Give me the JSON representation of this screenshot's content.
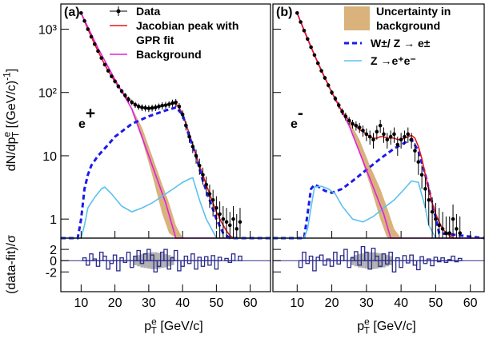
{
  "chart_data": [
    {
      "type": "line",
      "panel_label": "(a)",
      "charge_label": [
        [
          "e"
        ],
        [
          "+",
          "sup"
        ]
      ],
      "xlabel": [
        [
          "p"
        ],
        [
          "e",
          "sup"
        ],
        [
          "T",
          "sub"
        ],
        [
          " [GeV/c]"
        ]
      ],
      "ylabel": [
        [
          "dN/dp"
        ],
        [
          "e",
          "sup"
        ],
        [
          "T",
          "sub"
        ],
        [
          " [(GeV/c)"
        ],
        [
          "-1",
          "sup"
        ],
        [
          "]"
        ]
      ],
      "xlim": [
        4,
        66
      ],
      "xticks": [
        10,
        20,
        30,
        40,
        50,
        60
      ],
      "ylim": [
        0.5,
        2500
      ],
      "log_y": true,
      "ytick_labels": true,
      "yticks": [
        1,
        10,
        {
          "value": 100,
          "label": "10²"
        },
        {
          "value": 1000,
          "label": "10³"
        }
      ],
      "legend": "top-center",
      "series": [
        {
          "name": [
            "Data"
          ],
          "style": "points",
          "color": "#000000",
          "x": [
            10,
            11,
            12,
            13,
            14,
            15,
            16,
            17,
            18,
            19,
            20,
            21,
            22,
            23,
            24,
            25,
            26,
            27,
            28,
            29,
            30,
            31,
            32,
            33,
            34,
            35,
            36,
            37,
            38,
            39,
            40,
            41,
            42,
            43,
            44,
            45,
            46,
            47,
            48,
            49,
            50,
            51,
            52,
            53,
            54,
            55,
            56,
            57
          ],
          "values": [
            1800,
            1350,
            1000,
            760,
            580,
            450,
            350,
            275,
            220,
            180,
            150,
            125,
            105,
            90,
            78,
            70,
            64,
            60,
            58,
            57,
            56,
            57,
            58,
            60,
            62,
            63,
            65,
            68,
            70,
            60,
            45,
            30,
            20,
            14,
            10,
            7,
            5,
            3.5,
            2.5,
            2,
            1.5,
            1.2,
            1,
            0.9,
            0.8,
            1,
            0.7,
            0.9
          ],
          "errors": [
            60,
            50,
            40,
            30,
            25,
            20,
            18,
            15,
            13,
            12,
            11,
            10,
            9,
            8,
            8,
            7,
            7,
            7,
            7,
            7,
            7,
            7,
            7,
            7,
            8,
            8,
            8,
            9,
            9,
            8,
            7,
            5,
            4,
            3,
            2.5,
            2,
            1.5,
            1.2,
            1,
            0.9,
            0.8,
            0.7,
            0.6,
            0.6,
            0.5,
            0.6,
            0.5,
            0.6
          ]
        },
        {
          "name": [
            "Jacobian peak with",
            "GPR fit"
          ],
          "style": "line",
          "color": "#e8141c",
          "x": [
            10,
            11,
            12,
            13,
            14,
            15,
            16,
            17,
            18,
            19,
            20,
            21,
            22,
            23,
            24,
            25,
            26,
            27,
            28,
            29,
            30,
            31,
            32,
            33,
            34,
            35,
            36,
            37,
            38,
            39,
            40,
            41,
            42,
            43,
            44,
            45,
            46,
            47,
            48,
            49,
            50,
            51,
            52,
            53,
            54,
            55,
            56,
            57
          ],
          "values": [
            1800,
            1350,
            1000,
            760,
            580,
            450,
            350,
            275,
            220,
            180,
            150,
            125,
            105,
            90,
            78,
            70,
            64,
            60,
            58,
            57,
            56,
            57,
            58,
            60,
            62,
            63,
            65,
            67,
            66,
            58,
            45,
            32,
            22,
            15,
            10,
            7,
            5,
            3.5,
            2.5,
            1.8,
            1.3,
            1,
            0.8,
            0.65,
            0.55,
            0.5,
            0.5,
            0.5
          ]
        },
        {
          "name": [
            "Background"
          ],
          "style": "line",
          "color": "#e020e0",
          "x": [
            10,
            15,
            20,
            25,
            30,
            35,
            38,
            66
          ],
          "values": [
            1800,
            500,
            160,
            55,
            10,
            1.8,
            0.5,
            0.5
          ]
        },
        {
          "style": "band",
          "color": "#d9b27c",
          "x": [
            25,
            28,
            31,
            34,
            36,
            38,
            40
          ],
          "low": [
            50,
            18,
            5,
            1.2,
            0.6,
            0.5,
            0.5
          ],
          "high": [
            58,
            28,
            10,
            3.5,
            1.8,
            0.8,
            0.5
          ]
        },
        {
          "style": "line",
          "color": "#1a1aee",
          "dash": true,
          "x": [
            4,
            9,
            10,
            11,
            12,
            13,
            15,
            18,
            20,
            25,
            30,
            35,
            38,
            40,
            42,
            44,
            46,
            48,
            50,
            52,
            54,
            66
          ],
          "values": [
            0.5,
            0.5,
            1,
            3,
            5,
            7,
            10,
            15,
            20,
            32,
            42,
            52,
            58,
            45,
            20,
            10,
            4,
            2,
            1,
            0.6,
            0.5,
            0.5
          ]
        },
        {
          "style": "line",
          "color": "#5bc0f0",
          "x": [
            4,
            10,
            11,
            12,
            14,
            16,
            17,
            19,
            22,
            25,
            28,
            31,
            35,
            38,
            40,
            42,
            43,
            45,
            47,
            48,
            50,
            66
          ],
          "values": [
            0.5,
            0.5,
            0.8,
            1.5,
            2.2,
            3,
            3.2,
            2.5,
            1.6,
            1.3,
            1.5,
            1.8,
            2.5,
            3.2,
            3.8,
            4.3,
            4.5,
            2,
            1,
            0.8,
            0.5,
            0.5
          ]
        }
      ],
      "residual": {
        "ylabel": "(data-fit)/σ",
        "ylim": [
          -5.5,
          4
        ],
        "yticks": [
          -2,
          0,
          2
        ],
        "color": "#2b2b8c",
        "band_color": "#b0b0b0",
        "values": [
          0,
          0.5,
          -0.8,
          1.2,
          0.3,
          -1,
          1.5,
          0.8,
          -1.5,
          -0.5,
          1,
          -1.8,
          0.5,
          -0.3,
          1.5,
          -1.2,
          0.8,
          1.8,
          -0.5,
          1.2,
          2,
          1,
          -2,
          -1,
          1.5,
          2,
          -1.5,
          0.5,
          1.8,
          -1.8,
          -1,
          0.8,
          -0.5,
          1.2,
          -1.5,
          0.6,
          -1,
          0.7,
          -0.8,
          0.9,
          -1.5,
          0.6,
          0,
          0.4,
          -0.3,
          1.2,
          0,
          0.8
        ],
        "band_x": [
          26,
          27,
          28,
          29,
          30,
          31,
          32,
          33,
          34,
          35,
          36,
          37
        ],
        "band": [
          0.8,
          1,
          1.2,
          1.3,
          1.4,
          1.5,
          1.5,
          1.4,
          1.3,
          1.2,
          1,
          0.8
        ]
      }
    },
    {
      "type": "line",
      "panel_label": "(b)",
      "charge_label": [
        [
          "e"
        ],
        [
          "-",
          "sup"
        ]
      ],
      "xlabel": [
        [
          "p"
        ],
        [
          "e",
          "sup"
        ],
        [
          "T",
          "sub"
        ],
        [
          " [GeV/c]"
        ]
      ],
      "xlim": [
        3,
        64
      ],
      "xticks": [
        10,
        20,
        30,
        40,
        50,
        60
      ],
      "ylim": [
        0.5,
        2500
      ],
      "log_y": true,
      "ytick_labels": false,
      "yticks": [
        1,
        10,
        100,
        1000
      ],
      "legend": "top-right",
      "series": [
        {
          "name": [
            "Uncertainty in",
            "background"
          ],
          "style": "band",
          "color": "#d9b27c",
          "x": [
            25,
            28,
            31,
            34,
            36,
            38,
            40
          ],
          "low": [
            30,
            11,
            3.5,
            1,
            0.5,
            0.5,
            0.5
          ],
          "high": [
            36,
            18,
            7,
            3,
            1.5,
            0.7,
            0.5
          ]
        },
        {
          "name": [
            "W±/ Z → e±"
          ],
          "style": "line",
          "color": "#1a1aee",
          "dash": true,
          "x": [
            3,
            12,
            13,
            14,
            15,
            16,
            18,
            20,
            23,
            26,
            30,
            34,
            38,
            41,
            43,
            45,
            47,
            49,
            51,
            64
          ],
          "values": [
            0.5,
            0.5,
            1.2,
            3,
            3.5,
            3.3,
            2.8,
            2.6,
            3,
            4,
            6,
            9,
            13,
            16,
            18,
            12,
            5,
            1.8,
            0.6,
            0.5
          ]
        },
        {
          "name": [
            "Z →e⁺e⁻"
          ],
          "style": "line",
          "color": "#5bc0f0",
          "x": [
            3,
            12,
            13,
            14,
            15,
            17,
            19,
            21,
            23,
            26,
            29,
            32,
            35,
            38,
            41,
            43,
            45,
            47,
            48,
            50,
            64
          ],
          "values": [
            0.5,
            0.5,
            0.7,
            1.5,
            3.2,
            3.3,
            3,
            2.5,
            1.6,
            1,
            0.9,
            1.1,
            1.5,
            2,
            3,
            4,
            3.8,
            1.5,
            0.8,
            0.5,
            0.5
          ]
        },
        {
          "style": "line",
          "color": "#e020e0",
          "x": [
            10,
            15,
            20,
            25,
            30,
            35,
            37,
            64
          ],
          "values": [
            1800,
            390,
            100,
            30,
            6,
            1.2,
            0.5,
            0.5
          ]
        },
        {
          "style": "line",
          "color": "#e8141c",
          "x": [
            10,
            11,
            12,
            13,
            14,
            15,
            16,
            17,
            18,
            19,
            20,
            21,
            22,
            23,
            24,
            25,
            26,
            27,
            28,
            29,
            30,
            31,
            32,
            33,
            34,
            35,
            36,
            37,
            38,
            39,
            40,
            41,
            42,
            43,
            44,
            45,
            46,
            47,
            48,
            49,
            50,
            51,
            52,
            53,
            54,
            55,
            56,
            57
          ],
          "values": [
            1800,
            1300,
            950,
            700,
            520,
            390,
            290,
            220,
            170,
            130,
            100,
            80,
            63,
            50,
            42,
            36,
            32,
            29,
            26,
            24,
            22,
            20,
            19,
            19,
            20,
            20,
            19,
            19,
            19,
            18,
            18,
            19,
            20,
            21,
            19,
            14,
            9,
            5,
            3,
            1.8,
            1.2,
            0.9,
            0.7,
            0.6,
            0.55,
            0.5,
            0.5,
            0.5
          ]
        },
        {
          "style": "points",
          "color": "#000000",
          "x": [
            10,
            11,
            12,
            13,
            14,
            15,
            16,
            17,
            18,
            19,
            20,
            21,
            22,
            23,
            24,
            25,
            26,
            27,
            28,
            29,
            30,
            31,
            32,
            33,
            34,
            35,
            36,
            37,
            38,
            39,
            40,
            41,
            42,
            43,
            44,
            45,
            46,
            47,
            48,
            49,
            50,
            51,
            52,
            53,
            54,
            55,
            56,
            57
          ],
          "values": [
            1800,
            1300,
            950,
            700,
            520,
            390,
            290,
            220,
            170,
            130,
            100,
            80,
            63,
            50,
            42,
            36,
            32,
            30,
            28,
            25,
            22,
            20,
            18,
            24,
            30,
            22,
            18,
            20,
            22,
            15,
            18,
            20,
            22,
            18,
            12,
            8,
            5,
            3,
            2,
            1.3,
            1,
            0.8,
            0.7,
            0.6,
            0.6,
            1,
            0.7,
            0.6
          ],
          "errors": [
            55,
            45,
            38,
            30,
            25,
            20,
            17,
            14,
            12,
            10,
            9,
            8,
            7,
            6,
            6,
            5,
            5,
            5,
            5,
            5,
            5,
            5,
            5,
            6,
            7,
            6,
            5,
            5,
            6,
            5,
            5,
            5,
            6,
            5,
            4,
            3,
            2,
            1.5,
            1.2,
            0.9,
            0.8,
            0.7,
            0.6,
            0.5,
            0.5,
            0.7,
            0.5,
            0.5
          ]
        }
      ],
      "residual": {
        "ylim": [
          -5.5,
          4
        ],
        "yticks": [
          -2,
          0,
          2
        ],
        "color": "#2b2b8c",
        "band_color": "#b0b0b0",
        "values": [
          0,
          -1.2,
          1.5,
          -0.5,
          0.8,
          -1.8,
          0.6,
          1,
          -0.8,
          0.3,
          -1,
          1.5,
          -0.6,
          0.9,
          2,
          -1.2,
          0.5,
          1.6,
          -0.8,
          2.5,
          1.5,
          -1.5,
          2.2,
          0.8,
          -1,
          1.2,
          -0.6,
          1.5,
          -2,
          0.5,
          -1.2,
          0.9,
          -0.4,
          1,
          -0.8,
          -1.6,
          0.7,
          -0.5,
          0.3,
          -0.9,
          0.6,
          -0.2,
          0.5,
          -0.3,
          0.2,
          0.8,
          -0.2,
          0.4
        ],
        "band_x": [
          26,
          27,
          28,
          29,
          30,
          31,
          32,
          33,
          34,
          35,
          36,
          37
        ],
        "band": [
          0.8,
          1,
          1.2,
          1.3,
          1.4,
          1.5,
          1.5,
          1.4,
          1.3,
          1.2,
          1,
          0.8
        ]
      }
    }
  ]
}
